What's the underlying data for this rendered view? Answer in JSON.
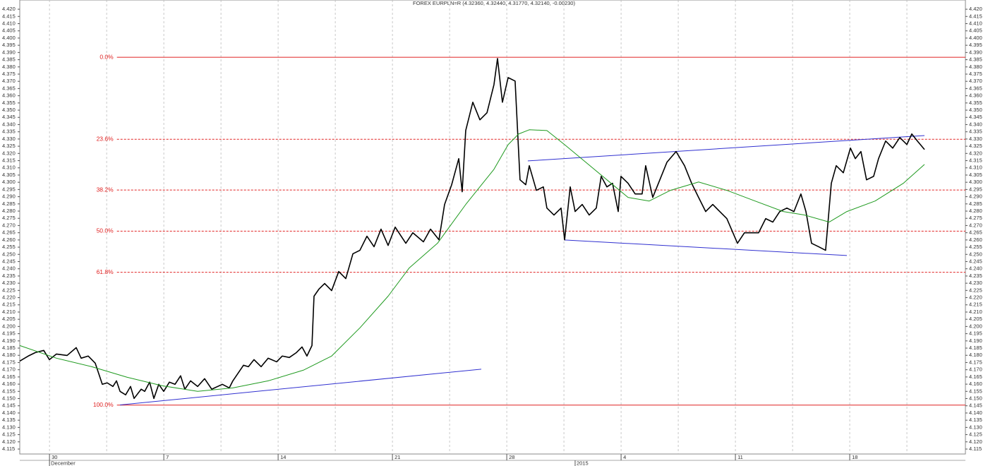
{
  "chart_data": {
    "type": "line",
    "title": "FOREX EURPLN=R (4.32360, 4.32440, 4.31770, 4.32140, -0.00230)",
    "xlim": [
      -2.6,
      80.12
    ],
    "ylim": [
      4.1101,
      4.4264
    ],
    "xticks": [
      {
        "value": 0,
        "label": "30"
      },
      {
        "value": 10,
        "label": "7"
      },
      {
        "value": 20,
        "label": "14"
      },
      {
        "value": 30,
        "label": "21"
      },
      {
        "value": 40,
        "label": "28"
      },
      {
        "value": 50,
        "label": "4"
      },
      {
        "value": 60,
        "label": "11"
      },
      {
        "value": 70,
        "label": "18"
      }
    ],
    "xminor": [
      5,
      15,
      25,
      35,
      45,
      55,
      65,
      75
    ],
    "date_labels": [
      {
        "value": 0,
        "label": "December"
      },
      {
        "value": 45.98,
        "label": "2015"
      }
    ],
    "yticks": [
      {
        "value": 4.42,
        "label": "4.420"
      },
      4.415,
      {
        "value": 4.41,
        "label": "4.410"
      },
      4.405,
      {
        "value": 4.4,
        "label": "4.400"
      },
      4.395,
      {
        "value": 4.39,
        "label": "4.390"
      },
      4.385,
      {
        "value": 4.38,
        "label": "4.380"
      },
      4.375,
      {
        "value": 4.37,
        "label": "4.370"
      },
      4.365,
      {
        "value": 4.36,
        "label": "4.360"
      },
      4.355,
      {
        "value": 4.35,
        "label": "4.350"
      },
      4.345,
      {
        "value": 4.34,
        "label": "4.340"
      },
      4.335,
      {
        "value": 4.33,
        "label": "4.330"
      },
      4.325,
      {
        "value": 4.32,
        "label": "4.320"
      },
      4.315,
      {
        "value": 4.31,
        "label": "4.310"
      },
      4.305,
      {
        "value": 4.3,
        "label": "4.300"
      },
      4.295,
      {
        "value": 4.29,
        "label": "4.290"
      },
      4.285,
      {
        "value": 4.28,
        "label": "4.280"
      },
      4.275,
      {
        "value": 4.27,
        "label": "4.270"
      },
      4.265,
      {
        "value": 4.26,
        "label": "4.260"
      },
      4.255,
      {
        "value": 4.25,
        "label": "4.250"
      },
      4.245,
      {
        "value": 4.24,
        "label": "4.240"
      },
      4.235,
      {
        "value": 4.23,
        "label": "4.230"
      },
      4.225,
      {
        "value": 4.22,
        "label": "4.220"
      },
      4.215,
      {
        "value": 4.21,
        "label": "4.210"
      },
      4.205,
      {
        "value": 4.2,
        "label": "4.200"
      },
      4.195,
      {
        "value": 4.19,
        "label": "4.190"
      },
      4.185,
      {
        "value": 4.18,
        "label": "4.180"
      },
      4.175,
      {
        "value": 4.17,
        "label": "4.170"
      },
      4.165,
      {
        "value": 4.16,
        "label": "4.160"
      },
      4.155,
      {
        "value": 4.15,
        "label": "4.150"
      },
      4.145,
      {
        "value": 4.14,
        "label": "4.140"
      },
      4.135,
      {
        "value": 4.13,
        "label": "4.130"
      },
      4.125,
      {
        "value": 4.12,
        "label": "4.120"
      },
      4.115
    ],
    "series": [
      {
        "color": "#000000",
        "width": 1.6,
        "x": [
          -2.6,
          -1.86,
          -1.24,
          -0.5,
          -0.01,
          0.61,
          1.54,
          2.34,
          2.77,
          3.39,
          4.0,
          4.62,
          5.05,
          5.55,
          5.86,
          6.17,
          6.66,
          7.09,
          7.4,
          8.02,
          8.33,
          8.76,
          9.13,
          9.56,
          9.99,
          10.49,
          10.98,
          11.47,
          11.84,
          12.34,
          12.96,
          13.57,
          14.19,
          15.12,
          15.73,
          16.04,
          16.97,
          17.4,
          17.89,
          18.51,
          19.13,
          19.87,
          20.36,
          20.98,
          21.6,
          22.09,
          22.52,
          22.96,
          23.14,
          23.57,
          24.07,
          24.68,
          25.3,
          25.92,
          26.54,
          27.15,
          27.77,
          28.39,
          29.0,
          29.62,
          30.24,
          31.17,
          31.78,
          32.71,
          33.33,
          34.07,
          34.56,
          35.18,
          35.8,
          36.1,
          36.41,
          37.03,
          37.65,
          38.27,
          38.88,
          39.19,
          39.62,
          40.12,
          40.73,
          41.16,
          41.66,
          41.97,
          42.59,
          43.2,
          43.51,
          44.13,
          44.75,
          45.06,
          45.55,
          45.98,
          46.6,
          47.21,
          47.83,
          48.26,
          48.76,
          49.25,
          49.75,
          49.99,
          50.61,
          51.23,
          51.84,
          52.15,
          52.77,
          53.39,
          54.01,
          54.81,
          55.55,
          56.17,
          56.78,
          57.4,
          58.02,
          58.63,
          59.25,
          60.18,
          60.79,
          61.41,
          62.03,
          62.65,
          63.27,
          63.88,
          64.5,
          65.12,
          65.73,
          66.17,
          66.66,
          67.28,
          67.89,
          68.39,
          68.82,
          69.44,
          70.06,
          70.49,
          70.98,
          71.47,
          72.09,
          72.52,
          73.14,
          73.76,
          74.38,
          75.0,
          75.43,
          75.92,
          76.54
        ],
        "values": [
          4.176,
          4.1795,
          4.1819,
          4.1834,
          4.177,
          4.1809,
          4.1799,
          4.1853,
          4.178,
          4.1795,
          4.1746,
          4.1599,
          4.1609,
          4.1584,
          4.1623,
          4.155,
          4.1526,
          4.1584,
          4.1501,
          4.1565,
          4.155,
          4.1614,
          4.1501,
          4.1599,
          4.155,
          4.1614,
          4.1599,
          4.1658,
          4.1565,
          4.1623,
          4.1584,
          4.1638,
          4.1565,
          4.1599,
          4.1574,
          4.1623,
          4.1731,
          4.1721,
          4.177,
          4.1721,
          4.178,
          4.1755,
          4.1795,
          4.1785,
          4.1819,
          4.1858,
          4.1795,
          4.1868,
          4.221,
          4.2259,
          4.2298,
          4.2249,
          4.2381,
          4.2332,
          4.2504,
          4.2528,
          4.2626,
          4.2553,
          4.2675,
          4.2562,
          4.2689,
          4.2577,
          4.265,
          4.2587,
          4.2675,
          4.2601,
          4.2846,
          4.2983,
          4.3164,
          4.2934,
          4.3359,
          4.3555,
          4.3433,
          4.3482,
          4.3677,
          4.3858,
          4.3555,
          4.3726,
          4.3702,
          4.3017,
          4.2983,
          4.3115,
          4.2944,
          4.2968,
          4.2821,
          4.2773,
          4.2821,
          4.2601,
          4.2968,
          4.2797,
          4.2846,
          4.2773,
          4.2821,
          4.3041,
          4.2968,
          4.2993,
          4.2797,
          4.3041,
          4.2993,
          4.2919,
          4.2919,
          4.3115,
          4.2895,
          4.3017,
          4.3139,
          4.3213,
          4.3115,
          4.2993,
          4.2895,
          4.2797,
          4.2846,
          4.2797,
          4.2748,
          4.2577,
          4.265,
          4.265,
          4.265,
          4.2748,
          4.2724,
          4.2797,
          4.2821,
          4.2797,
          4.2919,
          4.2797,
          4.2577,
          4.2553,
          4.2528,
          4.2993,
          4.3115,
          4.3066,
          4.3237,
          4.3164,
          4.3213,
          4.3017,
          4.3041,
          4.3164,
          4.3286,
          4.3237,
          4.331,
          4.3262,
          4.3335,
          4.3286,
          4.3227
        ]
      },
      {
        "color": "#1f9a1f",
        "width": 1,
        "x": [
          -2.6,
          0.61,
          3.7,
          6.78,
          9.87,
          12.96,
          16.04,
          19.13,
          22.21,
          24.68,
          27.15,
          29.62,
          31.47,
          33.94,
          36.41,
          38.88,
          40.12,
          41.04,
          41.97,
          43.51,
          45.06,
          46.91,
          48.76,
          50.61,
          52.46,
          54.32,
          56.78,
          59.25,
          61.72,
          64.19,
          66.04,
          68.2,
          69.75,
          72.22,
          74.69,
          76.54
        ],
        "values": [
          4.1868,
          4.178,
          4.1721,
          4.1648,
          4.1589,
          4.155,
          4.1574,
          4.1623,
          4.1697,
          4.1795,
          4.199,
          4.221,
          4.2406,
          4.2577,
          4.2846,
          4.309,
          4.3261,
          4.3335,
          4.3364,
          4.3359,
          4.3261,
          4.3139,
          4.3017,
          4.2895,
          4.287,
          4.2944,
          4.3002,
          4.2944,
          4.287,
          4.2797,
          4.2773,
          4.2724,
          4.2797,
          4.287,
          4.2993,
          4.3124
        ]
      }
    ],
    "trendlines": [
      {
        "color": "#3030d0",
        "x": [
          6.17,
          37.77
        ],
        "values": [
          4.1456,
          4.1704
        ]
      },
      {
        "color": "#3030d0",
        "x": [
          41.84,
          76.54
        ],
        "values": [
          4.3148,
          4.3324
        ]
      },
      {
        "color": "#3030d0",
        "x": [
          45.05,
          69.75
        ],
        "values": [
          4.26,
          4.2492
        ]
      }
    ],
    "fib_color": "#e02020",
    "fib_start": 5.9,
    "fib_levels": [
      {
        "label": "0.0%",
        "value": 4.3867,
        "style": "solid"
      },
      {
        "label": "23.6%",
        "value": 4.3298,
        "style": "dashed"
      },
      {
        "label": "38.2%",
        "value": 4.2946,
        "style": "dashed"
      },
      {
        "label": "50.0%",
        "value": 4.2661,
        "style": "dashed"
      },
      {
        "label": "61.8%",
        "value": 4.2376,
        "style": "dashed"
      },
      {
        "label": "100.0%",
        "value": 4.1455,
        "style": "solid"
      }
    ]
  }
}
